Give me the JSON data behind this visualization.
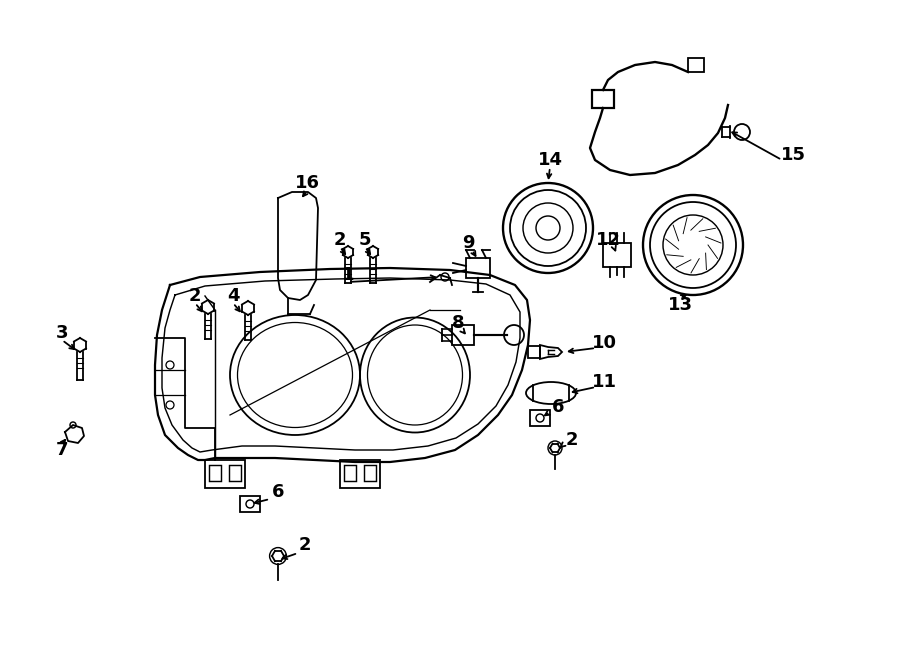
{
  "background_color": "#ffffff",
  "line_color": "#000000",
  "lw": 1.3,
  "figsize": [
    9.0,
    6.61
  ],
  "dpi": 100
}
